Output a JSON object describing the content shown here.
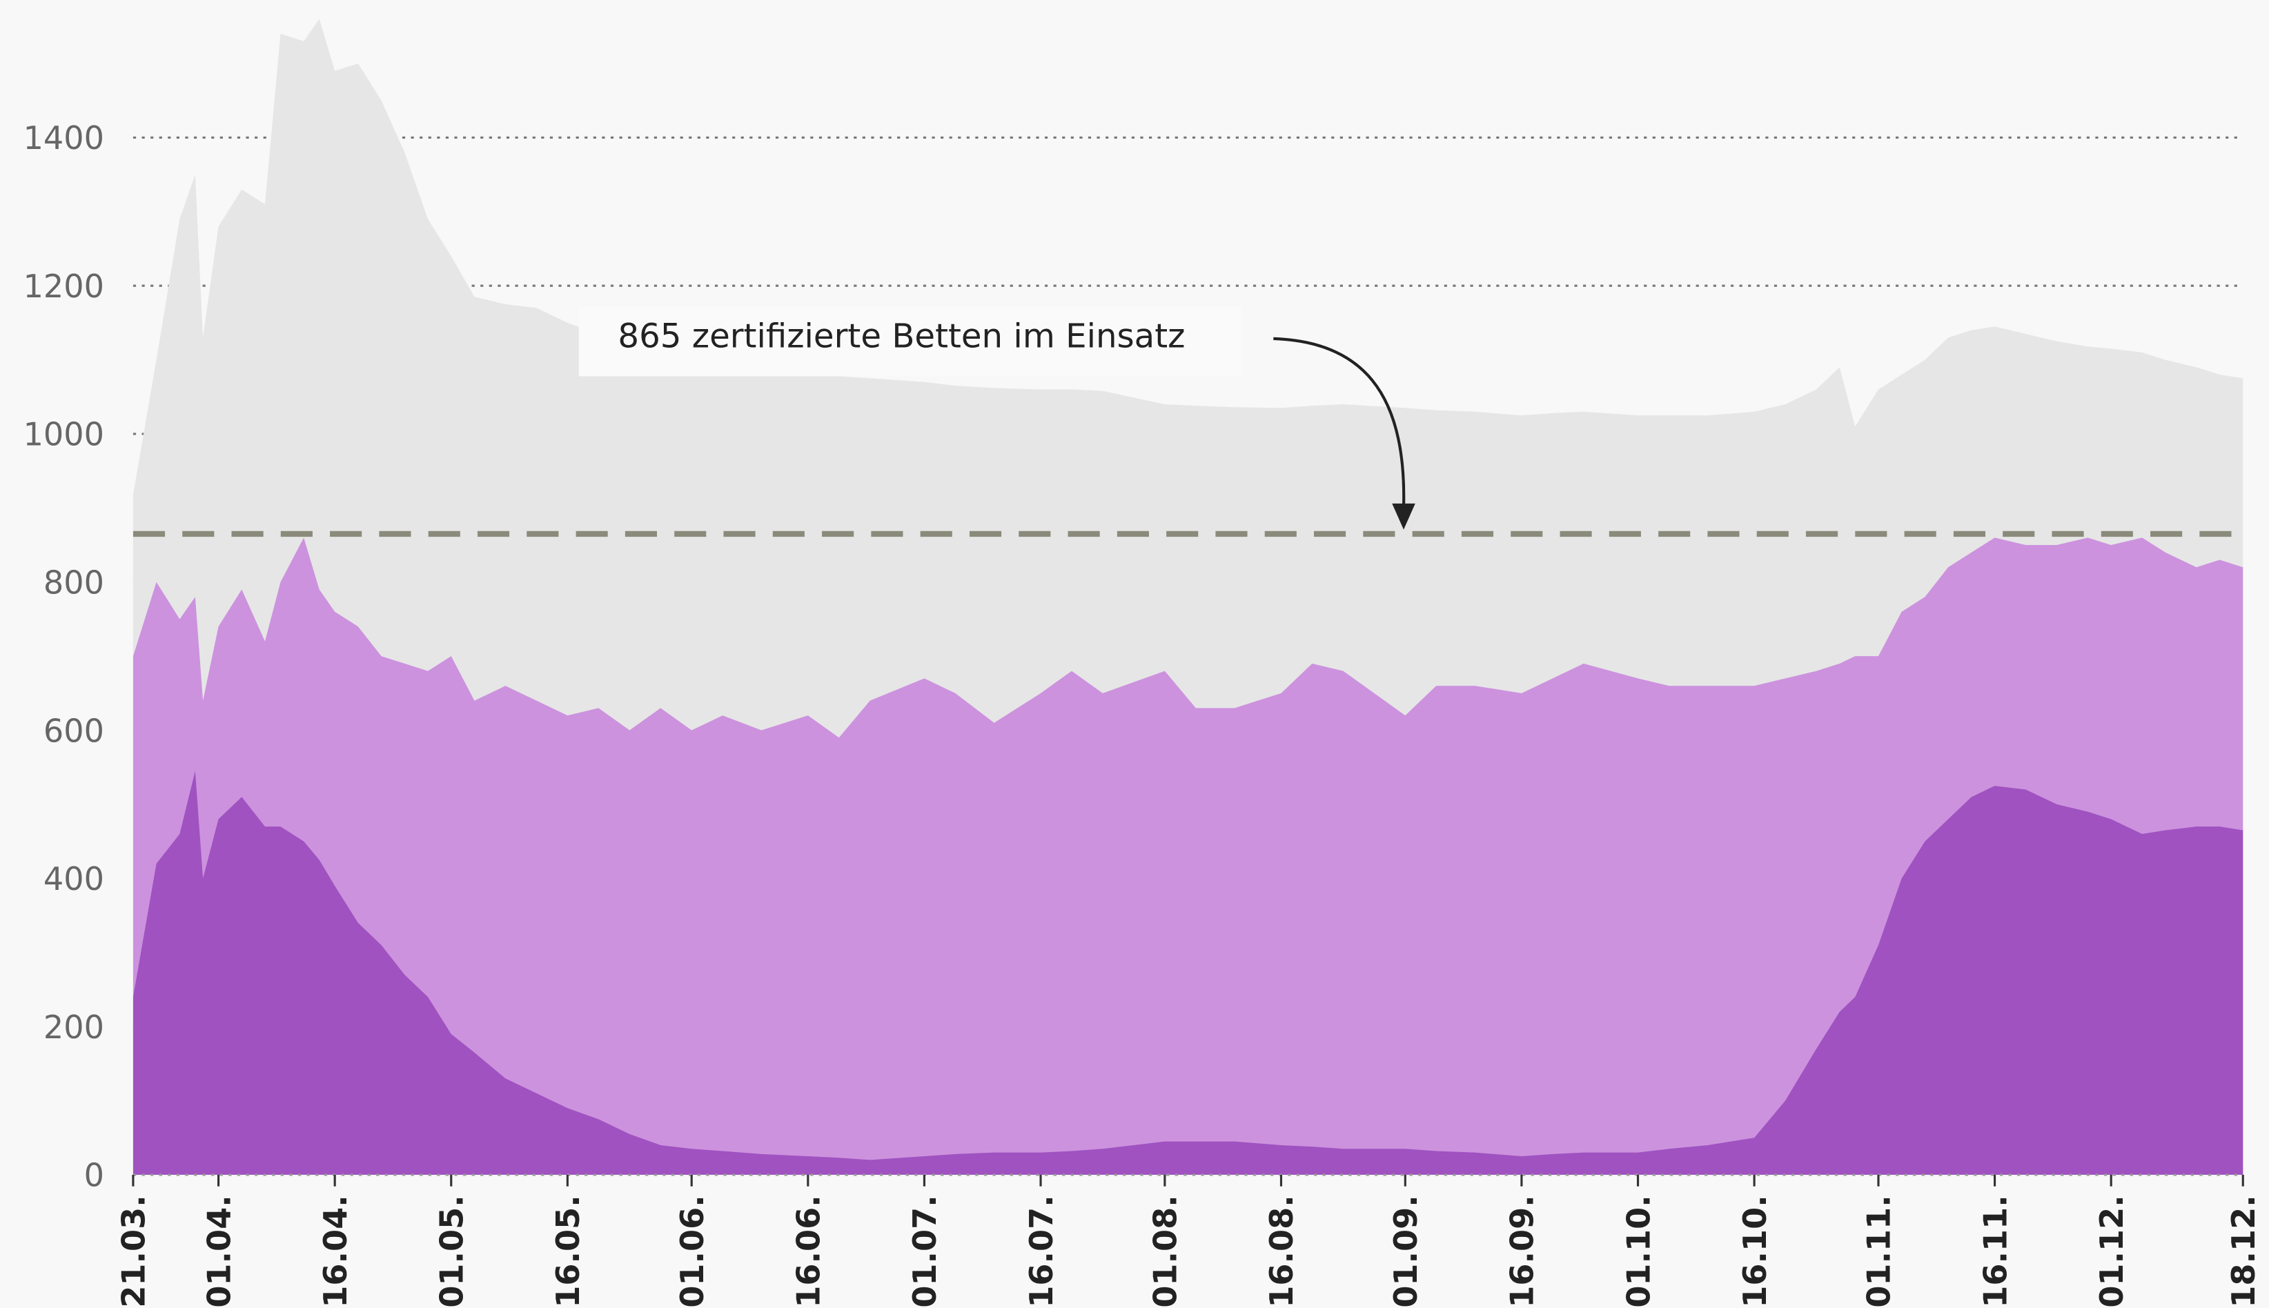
{
  "chart_data": {
    "type": "area",
    "x": [
      "21.03.",
      "24.03.",
      "27.03.",
      "29.03.",
      "30.03.",
      "01.04.",
      "04.04.",
      "07.04.",
      "09.04.",
      "12.04.",
      "14.04.",
      "16.04.",
      "19.04.",
      "22.04.",
      "25.04.",
      "28.04.",
      "01.05.",
      "04.05.",
      "08.05.",
      "12.05.",
      "16.05.",
      "20.05.",
      "24.05.",
      "28.05.",
      "01.06.",
      "05.06.",
      "10.06.",
      "16.06.",
      "20.06.",
      "24.06.",
      "01.07.",
      "05.07.",
      "10.07.",
      "16.07.",
      "20.07.",
      "24.07.",
      "01.08.",
      "05.08.",
      "10.08.",
      "16.08.",
      "20.08.",
      "24.08.",
      "01.09.",
      "05.09.",
      "10.09.",
      "16.09.",
      "20.09.",
      "24.09.",
      "01.10.",
      "05.10.",
      "10.10.",
      "16.10.",
      "20.10.",
      "24.10.",
      "27.10.",
      "29.10.",
      "01.11.",
      "04.11.",
      "07.11.",
      "10.11.",
      "13.11.",
      "16.11.",
      "20.11.",
      "24.11.",
      "28.11.",
      "01.12.",
      "05.12.",
      "08.12.",
      "12.12.",
      "15.12.",
      "18.12."
    ],
    "series": [
      {
        "color": "#e6e6e6",
        "values": [
          918,
          1100,
          1290,
          1350,
          1130,
          1280,
          1330,
          1310,
          1540,
          1530,
          1560,
          1490,
          1500,
          1450,
          1380,
          1290,
          1240,
          1185,
          1175,
          1170,
          1150,
          1135,
          1120,
          1110,
          1100,
          1100,
          1095,
          1080,
          1078,
          1075,
          1070,
          1065,
          1062,
          1060,
          1060,
          1058,
          1040,
          1038,
          1036,
          1035,
          1038,
          1040,
          1035,
          1032,
          1030,
          1025,
          1028,
          1030,
          1025,
          1025,
          1025,
          1030,
          1040,
          1060,
          1090,
          1010,
          1060,
          1080,
          1100,
          1130,
          1140,
          1145,
          1135,
          1125,
          1118,
          1115,
          1110,
          1100,
          1090,
          1080,
          1075
        ]
      },
      {
        "color": "#cc92de",
        "values": [
          700,
          800,
          750,
          780,
          640,
          740,
          790,
          720,
          800,
          860,
          790,
          760,
          740,
          700,
          690,
          680,
          700,
          640,
          660,
          640,
          620,
          630,
          600,
          630,
          600,
          620,
          600,
          620,
          590,
          640,
          670,
          650,
          610,
          650,
          680,
          650,
          680,
          630,
          630,
          650,
          690,
          680,
          620,
          660,
          660,
          650,
          670,
          690,
          670,
          660,
          660,
          660,
          670,
          680,
          690,
          700,
          700,
          760,
          780,
          820,
          840,
          860,
          850,
          850,
          860,
          850,
          860,
          840,
          820,
          830,
          820
        ]
      },
      {
        "color": "#9f52c0",
        "values": [
          240,
          420,
          460,
          545,
          400,
          480,
          510,
          470,
          470,
          450,
          425,
          390,
          340,
          310,
          270,
          240,
          190,
          165,
          130,
          110,
          90,
          75,
          55,
          40,
          35,
          32,
          28,
          25,
          23,
          20,
          25,
          28,
          30,
          30,
          32,
          35,
          45,
          45,
          45,
          40,
          38,
          35,
          35,
          32,
          30,
          25,
          28,
          30,
          30,
          35,
          40,
          50,
          100,
          170,
          220,
          240,
          310,
          400,
          450,
          480,
          510,
          525,
          520,
          500,
          490,
          480,
          460,
          465,
          470,
          470,
          465
        ]
      }
    ],
    "xlim": [
      "21.03.",
      "18.12."
    ],
    "xticks": [
      "21.03.",
      "01.04.",
      "16.04.",
      "01.05.",
      "16.05.",
      "01.06.",
      "16.06.",
      "01.07.",
      "16.07.",
      "01.08.",
      "16.08.",
      "01.09.",
      "16.09.",
      "01.10.",
      "16.10.",
      "01.11.",
      "16.11.",
      "01.12.",
      "18.12."
    ],
    "ylim": [
      0,
      1600
    ],
    "yticks": [
      0,
      200,
      400,
      600,
      800,
      1000,
      1200,
      1400
    ],
    "grid": true,
    "reference_line": {
      "value": 865,
      "color": "#8b8b7b"
    },
    "annotation": "865 zertifizierte Betten im Einsatz"
  }
}
